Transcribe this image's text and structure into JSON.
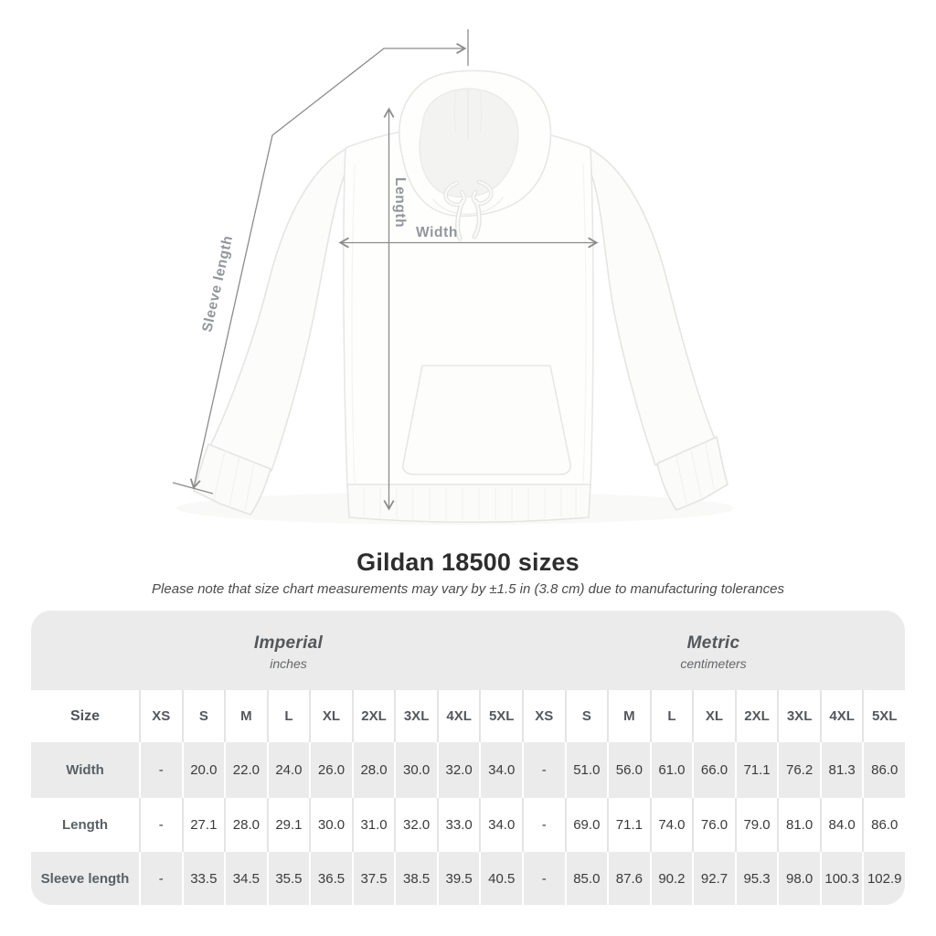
{
  "diagram": {
    "labels": {
      "sleeve_length": "Sleeve length",
      "length": "Length",
      "width": "Width"
    },
    "line_color": "#8c8c8c",
    "label_color": "#92969a"
  },
  "chart_data": {
    "type": "table",
    "title": "Gildan 18500 sizes",
    "note": "Please note that size chart measurements may vary by ±1.5 in (3.8 cm) due to manufacturing tolerances",
    "unit_groups": [
      {
        "label": "Imperial",
        "sublabel": "inches"
      },
      {
        "label": "Metric",
        "sublabel": "centimeters"
      }
    ],
    "corner_header": "Size",
    "size_columns": [
      "XS",
      "S",
      "M",
      "L",
      "XL",
      "2XL",
      "3XL",
      "4XL",
      "5XL"
    ],
    "rows": [
      {
        "label": "Width",
        "imperial": [
          "-",
          "20.0",
          "22.0",
          "24.0",
          "26.0",
          "28.0",
          "30.0",
          "32.0",
          "34.0"
        ],
        "metric": [
          "-",
          "51.0",
          "56.0",
          "61.0",
          "66.0",
          "71.1",
          "76.2",
          "81.3",
          "86.0"
        ]
      },
      {
        "label": "Length",
        "imperial": [
          "-",
          "27.1",
          "28.0",
          "29.1",
          "30.0",
          "31.0",
          "32.0",
          "33.0",
          "34.0"
        ],
        "metric": [
          "-",
          "69.0",
          "71.1",
          "74.0",
          "76.0",
          "79.0",
          "81.0",
          "84.0",
          "86.0"
        ]
      },
      {
        "label": "Sleeve length",
        "imperial": [
          "-",
          "33.5",
          "34.5",
          "35.5",
          "36.5",
          "37.5",
          "38.5",
          "39.5",
          "40.5"
        ],
        "metric": [
          "-",
          "85.0",
          "87.6",
          "90.2",
          "92.7",
          "95.3",
          "98.0",
          "100.3",
          "102.9"
        ]
      }
    ],
    "colors": {
      "stripe": "#ebebeb",
      "header_text": "#54585c",
      "value_text": "#3b3b3b"
    }
  }
}
